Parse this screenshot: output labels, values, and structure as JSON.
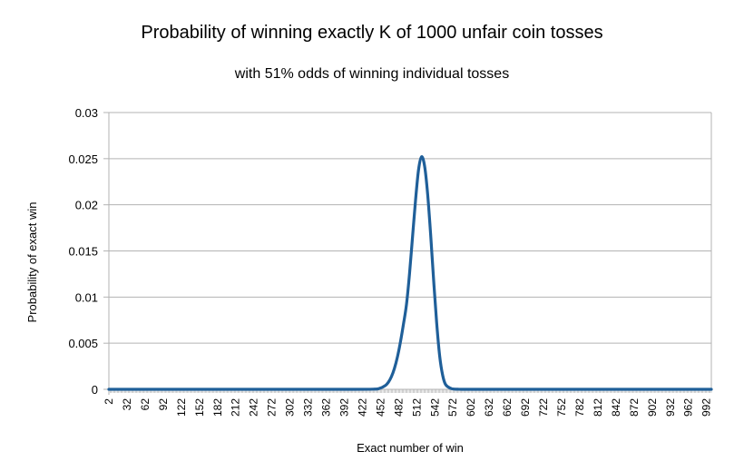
{
  "colors": {
    "series": "#1f5f99",
    "grid": "#b3b3b3",
    "axis": "#b3b3b3"
  },
  "chart_data": {
    "type": "line",
    "title": "Probability of winning exactly K of 1000 unfair coin tosses",
    "subtitle": "with 51% odds of winning individual tosses",
    "xlabel": "Exact number of win",
    "ylabel": "Probability of exact win",
    "ylim": [
      0,
      0.03
    ],
    "yticks": [
      "0",
      "0.005",
      "0.01",
      "0.015",
      "0.02",
      "0.025",
      "0.03"
    ],
    "xlim": [
      2,
      1000
    ],
    "xticks": [
      "2",
      "32",
      "62",
      "92",
      "122",
      "152",
      "182",
      "212",
      "242",
      "272",
      "302",
      "332",
      "362",
      "392",
      "422",
      "452",
      "482",
      "512",
      "542",
      "572",
      "602",
      "632",
      "662",
      "692",
      "722",
      "752",
      "782",
      "812",
      "842",
      "872",
      "902",
      "932",
      "962",
      "992"
    ],
    "grid": true,
    "legend": "none",
    "series": [
      {
        "x": [
          2,
          100,
          200,
          300,
          400,
          440,
          450,
          460,
          465,
          470,
          475,
          480,
          485,
          490,
          495,
          500,
          505,
          510,
          515,
          520,
          525,
          530,
          535,
          540,
          545,
          550,
          555,
          560,
          570,
          580,
          600,
          700,
          800,
          900,
          1000
        ],
        "values": [
          0,
          0,
          0,
          0,
          0,
          2e-05,
          9e-05,
          0.00041,
          0.00077,
          0.00136,
          0.00226,
          0.00351,
          0.00514,
          0.00707,
          0.0092,
          0.0125,
          0.0165,
          0.0205,
          0.0238,
          0.0252,
          0.0242,
          0.0212,
          0.0168,
          0.0118,
          0.0072,
          0.0036,
          0.0015,
          0.0005,
          6e-05,
          1e-05,
          0,
          0,
          0,
          0,
          0
        ]
      }
    ]
  }
}
